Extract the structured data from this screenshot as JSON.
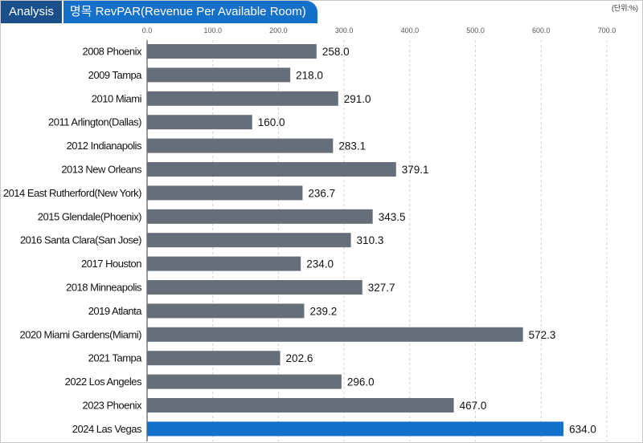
{
  "header": {
    "tag": "Analysis",
    "title": "명목 RevPAR(Revenue Per Available Room)",
    "unit": "(단위:%)"
  },
  "colors": {
    "bar": "#656e79",
    "highlight": "#1470c8",
    "grid": "#cfcfcf"
  },
  "chart_data": {
    "type": "bar",
    "orientation": "horizontal",
    "grid": true,
    "xlim": [
      0,
      700
    ],
    "ticks": [
      "0.0",
      "100.0",
      "200.0",
      "300.0",
      "400.0",
      "500.0",
      "600.0",
      "700.0"
    ],
    "tick_values": [
      0,
      100,
      200,
      300,
      400,
      500,
      600,
      700
    ],
    "categories": [
      "2008 Phoenix",
      "2009 Tampa",
      "2010 Miami",
      "2011 Arlington(Dallas)",
      "2012 Indianapolis",
      "2013 New Orleans",
      "2014 East Rutherford(New York)",
      "2015 Glendale(Phoenix)",
      "2016 Santa Clara(San Jose)",
      "2017 Houston",
      "2018 Minneapolis",
      "2019 Atlanta",
      "2020 Miami Gardens(Miami)",
      "2021 Tampa",
      "2022 Los Angeles",
      "2023 Phoenix",
      "2024 Las Vegas"
    ],
    "values": [
      258.0,
      218.0,
      291.0,
      160.0,
      283.1,
      379.1,
      236.7,
      343.5,
      310.3,
      234.0,
      327.7,
      239.2,
      572.3,
      202.6,
      296.0,
      467.0,
      634.0
    ],
    "labels": [
      "258.0",
      "218.0",
      "291.0",
      "160.0",
      "283.1",
      "379.1",
      "236.7",
      "343.5",
      "310.3",
      "234.0",
      "327.7",
      "239.2",
      "572.3",
      "202.6",
      "296.0",
      "467.0",
      "634.0"
    ],
    "highlight_index": 16
  }
}
